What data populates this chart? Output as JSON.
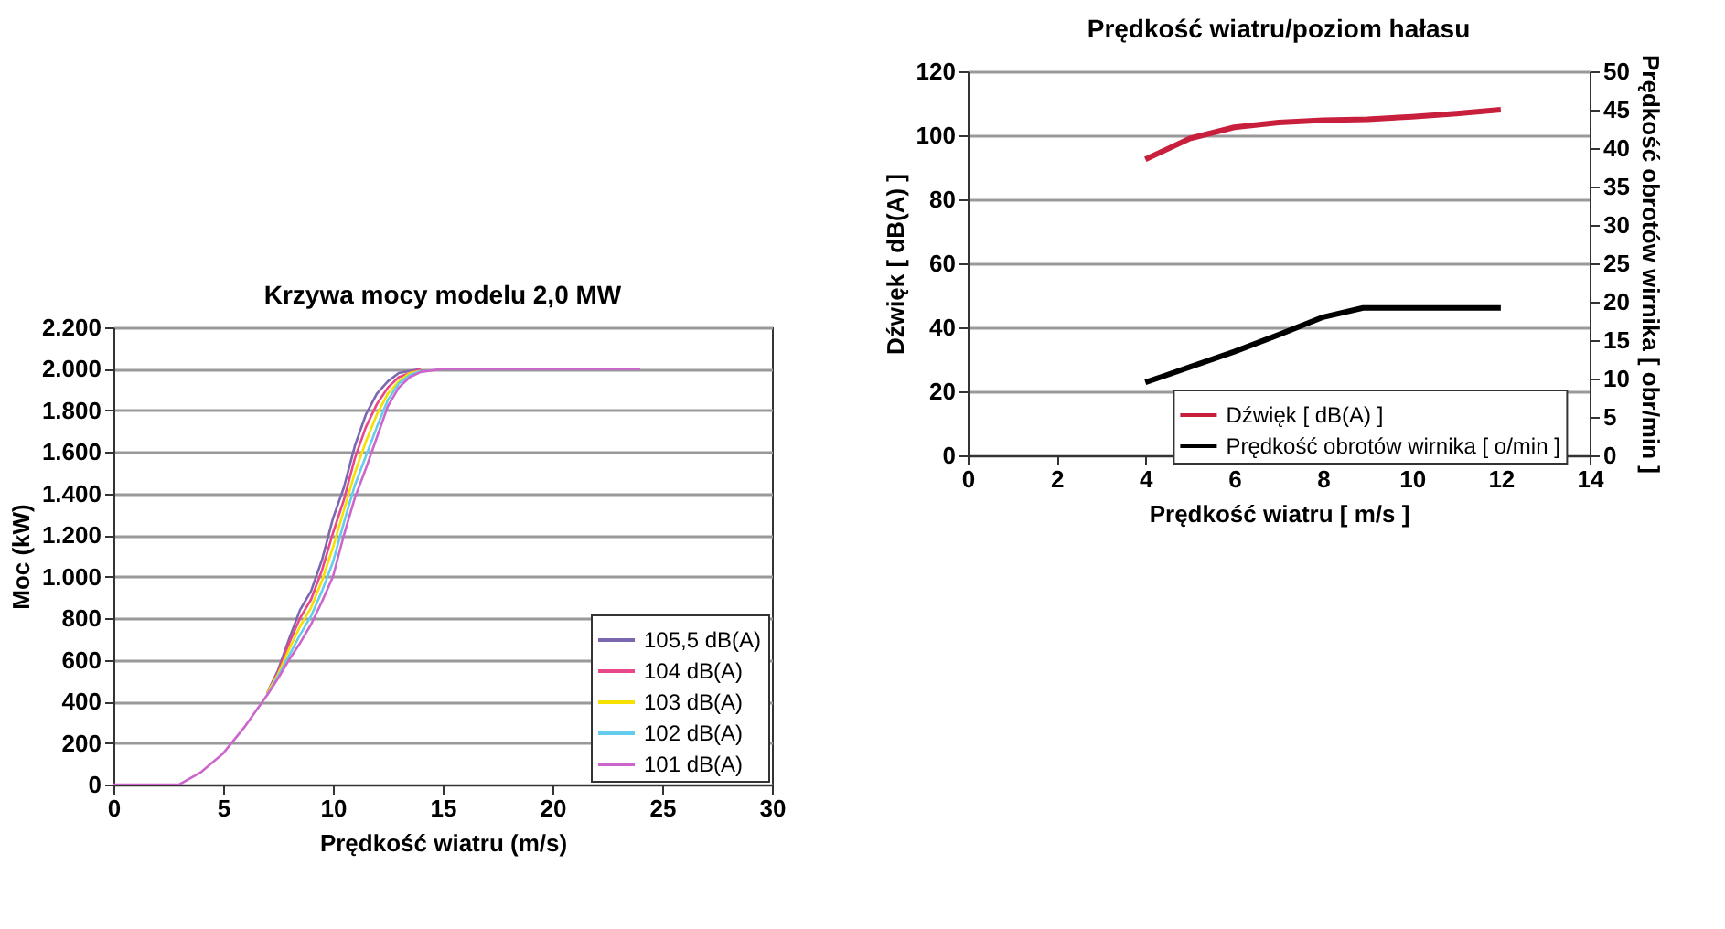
{
  "chart_data": [
    {
      "type": "line",
      "title": "Krzywa mocy modelu 2,0 MW",
      "xlabel": "Prędkość wiatru (m/s)",
      "ylabel": "Moc (kW)",
      "x": [
        0,
        3,
        4,
        5,
        6,
        7,
        7.5,
        8,
        8.5,
        9,
        9.5,
        10,
        10.5,
        11,
        11.5,
        12,
        12.5,
        13,
        13.5,
        14,
        15,
        24
      ],
      "series": [
        {
          "name": "105,5 dB(A)",
          "color": "#7b68b0",
          "values": [
            null,
            null,
            null,
            null,
            null,
            440,
            550,
            700,
            840,
            930,
            1080,
            1280,
            1430,
            1630,
            1780,
            1880,
            1940,
            1980,
            1990,
            2000,
            null,
            null
          ]
        },
        {
          "name": "104 dB(A)",
          "color": "#e8488a",
          "values": [
            null,
            null,
            null,
            null,
            null,
            440,
            540,
            680,
            800,
            890,
            1030,
            1210,
            1370,
            1570,
            1720,
            1830,
            1910,
            1960,
            1980,
            2000,
            null,
            null
          ]
        },
        {
          "name": "103 dB(A)",
          "color": "#f5e000",
          "values": [
            null,
            null,
            null,
            null,
            null,
            440,
            530,
            650,
            760,
            850,
            980,
            1140,
            1320,
            1500,
            1650,
            1780,
            1880,
            1940,
            1980,
            1990,
            null,
            null
          ]
        },
        {
          "name": "102 dB(A)",
          "color": "#66ccee",
          "values": [
            null,
            null,
            null,
            null,
            null,
            430,
            520,
            620,
            720,
            810,
            930,
            1070,
            1260,
            1440,
            1580,
            1720,
            1850,
            1930,
            1970,
            1990,
            null,
            null
          ]
        },
        {
          "name": "101 dB(A)",
          "color": "#cc66cc",
          "values": [
            0,
            0,
            60,
            150,
            280,
            430,
            510,
            600,
            680,
            770,
            880,
            1000,
            1200,
            1380,
            1520,
            1670,
            1820,
            1910,
            1960,
            1985,
            2000,
            2000
          ]
        }
      ],
      "xlim": [
        0,
        30
      ],
      "xticks": [
        0,
        5,
        10,
        15,
        20,
        25,
        30
      ],
      "ylim": [
        0,
        2200
      ],
      "yticks": [
        0,
        200,
        400,
        600,
        800,
        {
          "value": 1000,
          "label": "1.000"
        },
        {
          "value": 1200,
          "label": "1.200"
        },
        {
          "value": 1400,
          "label": "1.400"
        },
        {
          "value": 1600,
          "label": "1.600"
        },
        {
          "value": 1800,
          "label": "1.800"
        },
        {
          "value": 2000,
          "label": "2.000"
        },
        {
          "value": 2200,
          "label": "2.200"
        }
      ],
      "grid": "y",
      "legend": "bottom right",
      "line_style": "solid"
    },
    {
      "type": "line",
      "title": "Prędkość wiatru/poziom hałasu",
      "xlabel": "Prędkość wiatru  [ m/s ]",
      "ylabel": "Dźwięk  [ dB(A) ]",
      "y2label": "Prędkość obrotów wirnika  [ obr/min ]",
      "series": [
        {
          "name": "Dźwięk [ dB(A) ]",
          "color": "#c8203c",
          "x": [
            4,
            5,
            6,
            7,
            8,
            9,
            10,
            11,
            12
          ],
          "values": [
            92.5,
            99,
            102.5,
            104,
            104.7,
            105,
            105.8,
            106.8,
            108
          ]
        },
        {
          "name": "Prędkość obrotów wirnika [ o/min ]",
          "color": "#000000",
          "axis": "y2",
          "x": [
            4,
            5,
            6,
            7,
            8,
            8.9,
            12
          ],
          "values": [
            9.5,
            11.5,
            13.5,
            15.7,
            18,
            19.2,
            19.2
          ]
        }
      ],
      "xlim": [
        0,
        14
      ],
      "xticks": [
        0,
        2,
        4,
        6,
        8,
        10,
        12,
        14
      ],
      "ylim": [
        0,
        120
      ],
      "yticks": [
        0,
        20,
        40,
        60,
        80,
        100,
        120
      ],
      "y2lim": [
        0,
        50
      ],
      "y2ticks": [
        0,
        5,
        10,
        15,
        20,
        25,
        30,
        35,
        40,
        45,
        50
      ],
      "grid": "y",
      "legend": "bottom right",
      "line_style": "solid"
    }
  ]
}
